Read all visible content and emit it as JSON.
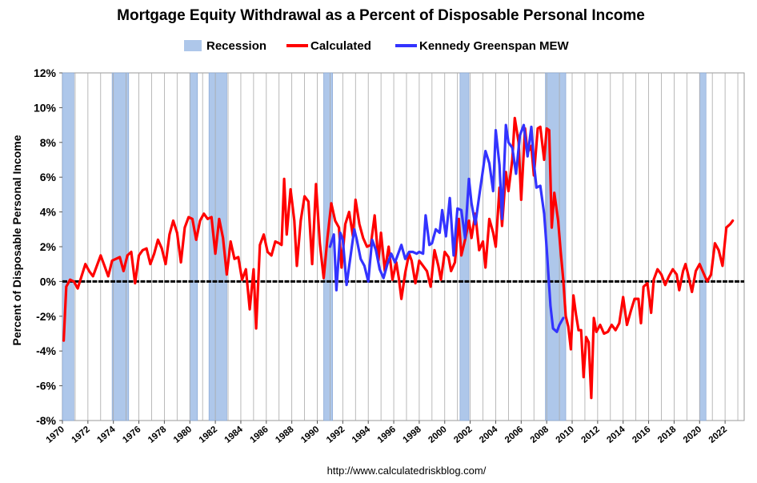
{
  "chart_data": {
    "type": "line",
    "title": "Mortgage Equity Withdrawal as a Percent of Disposable Personal Income",
    "ylabel": "Percent of Disposable Personal Income",
    "xlabel": "",
    "source": "http://www.calculatedriskblog.com/",
    "xlim": [
      1970,
      2023.5
    ],
    "ylim": [
      -8,
      12
    ],
    "x_ticks": [
      1970,
      1972,
      1974,
      1976,
      1978,
      1980,
      1982,
      1984,
      1986,
      1988,
      1990,
      1992,
      1994,
      1996,
      1998,
      2000,
      2002,
      2004,
      2006,
      2008,
      2010,
      2012,
      2014,
      2016,
      2018,
      2020,
      2022
    ],
    "y_ticks": [
      -8,
      -6,
      -4,
      -2,
      0,
      2,
      4,
      6,
      8,
      10,
      12
    ],
    "y_tick_labels": [
      "-8%",
      "-6%",
      "-4%",
      "-2%",
      "0%",
      "2%",
      "4%",
      "6%",
      "8%",
      "10%",
      "12%"
    ],
    "grid": "vertical",
    "legend_position": "top",
    "legend": [
      {
        "name": "Recession",
        "color": "#aec7ea",
        "kind": "box"
      },
      {
        "name": "Calculated",
        "color": "#ff0000",
        "kind": "line"
      },
      {
        "name": "Kennedy Greenspan MEW",
        "color": "#3333ff",
        "kind": "line"
      }
    ],
    "recessions": [
      [
        1970.0,
        1970.9
      ],
      [
        1973.9,
        1975.2
      ],
      [
        1980.0,
        1980.6
      ],
      [
        1981.5,
        1982.9
      ],
      [
        1990.5,
        1991.2
      ],
      [
        2001.2,
        2001.9
      ],
      [
        2007.9,
        2009.5
      ],
      [
        2020.0,
        2020.5
      ]
    ],
    "series": [
      {
        "name": "Calculated",
        "color": "#ff0000",
        "points": [
          [
            1970.1,
            -3.4
          ],
          [
            1970.3,
            -0.3
          ],
          [
            1970.6,
            0.1
          ],
          [
            1970.9,
            0.0
          ],
          [
            1971.2,
            -0.4
          ],
          [
            1971.5,
            0.3
          ],
          [
            1971.8,
            1.0
          ],
          [
            1972.1,
            0.6
          ],
          [
            1972.4,
            0.3
          ],
          [
            1972.7,
            0.9
          ],
          [
            1973.0,
            1.5
          ],
          [
            1973.3,
            0.9
          ],
          [
            1973.6,
            0.3
          ],
          [
            1973.9,
            1.2
          ],
          [
            1974.2,
            1.3
          ],
          [
            1974.5,
            1.4
          ],
          [
            1974.8,
            0.6
          ],
          [
            1975.1,
            1.5
          ],
          [
            1975.4,
            1.7
          ],
          [
            1975.7,
            -0.1
          ],
          [
            1976.0,
            1.5
          ],
          [
            1976.3,
            1.8
          ],
          [
            1976.6,
            1.9
          ],
          [
            1976.9,
            1.0
          ],
          [
            1977.2,
            1.6
          ],
          [
            1977.5,
            2.4
          ],
          [
            1977.8,
            1.9
          ],
          [
            1978.1,
            1.0
          ],
          [
            1978.4,
            2.7
          ],
          [
            1978.7,
            3.5
          ],
          [
            1979.0,
            2.8
          ],
          [
            1979.3,
            1.1
          ],
          [
            1979.6,
            3.1
          ],
          [
            1979.9,
            3.7
          ],
          [
            1980.2,
            3.6
          ],
          [
            1980.5,
            2.4
          ],
          [
            1980.8,
            3.5
          ],
          [
            1981.1,
            3.9
          ],
          [
            1981.4,
            3.6
          ],
          [
            1981.7,
            3.7
          ],
          [
            1982.0,
            1.6
          ],
          [
            1982.3,
            3.6
          ],
          [
            1982.6,
            2.5
          ],
          [
            1982.9,
            0.4
          ],
          [
            1983.2,
            2.3
          ],
          [
            1983.5,
            1.3
          ],
          [
            1983.8,
            1.4
          ],
          [
            1984.1,
            0.1
          ],
          [
            1984.4,
            0.7
          ],
          [
            1984.7,
            -1.6
          ],
          [
            1985.0,
            0.7
          ],
          [
            1985.2,
            -2.7
          ],
          [
            1985.5,
            2.1
          ],
          [
            1985.8,
            2.7
          ],
          [
            1986.1,
            1.7
          ],
          [
            1986.4,
            1.5
          ],
          [
            1986.7,
            2.3
          ],
          [
            1987.0,
            2.2
          ],
          [
            1987.2,
            2.1
          ],
          [
            1987.4,
            5.9
          ],
          [
            1987.6,
            2.7
          ],
          [
            1987.9,
            5.3
          ],
          [
            1988.2,
            3.5
          ],
          [
            1988.4,
            0.9
          ],
          [
            1988.7,
            3.5
          ],
          [
            1989.0,
            4.9
          ],
          [
            1989.3,
            4.6
          ],
          [
            1989.6,
            1.0
          ],
          [
            1989.9,
            5.6
          ],
          [
            1990.2,
            2.2
          ],
          [
            1990.5,
            0.2
          ],
          [
            1990.8,
            2.5
          ],
          [
            1991.1,
            4.5
          ],
          [
            1991.4,
            3.5
          ],
          [
            1991.7,
            3.1
          ],
          [
            1991.9,
            0.8
          ],
          [
            1992.2,
            3.3
          ],
          [
            1992.5,
            4.0
          ],
          [
            1992.8,
            2.6
          ],
          [
            1993.0,
            4.7
          ],
          [
            1993.3,
            3.3
          ],
          [
            1993.6,
            2.5
          ],
          [
            1993.9,
            2.0
          ],
          [
            1994.2,
            2.1
          ],
          [
            1994.5,
            3.8
          ],
          [
            1994.8,
            1.2
          ],
          [
            1995.0,
            2.8
          ],
          [
            1995.3,
            0.6
          ],
          [
            1995.6,
            2.0
          ],
          [
            1995.9,
            0.1
          ],
          [
            1996.2,
            1.1
          ],
          [
            1996.4,
            0.2
          ],
          [
            1996.6,
            -1.0
          ],
          [
            1996.9,
            0.5
          ],
          [
            1997.2,
            1.6
          ],
          [
            1997.4,
            1.2
          ],
          [
            1997.7,
            -0.1
          ],
          [
            1998.0,
            1.2
          ],
          [
            1998.3,
            0.9
          ],
          [
            1998.6,
            0.6
          ],
          [
            1998.9,
            -0.3
          ],
          [
            1999.2,
            1.8
          ],
          [
            1999.5,
            0.9
          ],
          [
            1999.7,
            0.1
          ],
          [
            2000.0,
            1.7
          ],
          [
            2000.3,
            1.4
          ],
          [
            2000.5,
            0.6
          ],
          [
            2000.8,
            1.1
          ],
          [
            2001.1,
            3.6
          ],
          [
            2001.3,
            1.5
          ],
          [
            2001.6,
            2.4
          ],
          [
            2001.9,
            3.5
          ],
          [
            2002.1,
            2.5
          ],
          [
            2002.4,
            3.9
          ],
          [
            2002.7,
            1.8
          ],
          [
            2003.0,
            2.3
          ],
          [
            2003.2,
            0.8
          ],
          [
            2003.5,
            3.6
          ],
          [
            2003.8,
            2.8
          ],
          [
            2004.0,
            2.0
          ],
          [
            2004.3,
            5.4
          ],
          [
            2004.5,
            3.2
          ],
          [
            2004.8,
            6.3
          ],
          [
            2005.0,
            5.2
          ],
          [
            2005.3,
            7.0
          ],
          [
            2005.5,
            9.4
          ],
          [
            2005.8,
            8.0
          ],
          [
            2006.0,
            4.7
          ],
          [
            2006.3,
            8.8
          ],
          [
            2006.5,
            7.4
          ],
          [
            2006.8,
            7.8
          ],
          [
            2007.0,
            6.1
          ],
          [
            2007.3,
            8.8
          ],
          [
            2007.5,
            8.9
          ],
          [
            2007.8,
            7.0
          ],
          [
            2008.0,
            8.8
          ],
          [
            2008.2,
            8.7
          ],
          [
            2008.4,
            3.1
          ],
          [
            2008.6,
            5.1
          ],
          [
            2008.9,
            3.5
          ],
          [
            2009.1,
            1.7
          ],
          [
            2009.3,
            0.1
          ],
          [
            2009.5,
            -2.0
          ],
          [
            2009.7,
            -2.6
          ],
          [
            2009.9,
            -3.9
          ],
          [
            2010.1,
            -0.8
          ],
          [
            2010.3,
            -1.9
          ],
          [
            2010.5,
            -2.8
          ],
          [
            2010.7,
            -2.8
          ],
          [
            2010.9,
            -5.5
          ],
          [
            2011.1,
            -3.2
          ],
          [
            2011.3,
            -3.5
          ],
          [
            2011.5,
            -6.7
          ],
          [
            2011.7,
            -2.1
          ],
          [
            2011.9,
            -2.9
          ],
          [
            2012.2,
            -2.5
          ],
          [
            2012.5,
            -3.0
          ],
          [
            2012.8,
            -2.9
          ],
          [
            2013.1,
            -2.5
          ],
          [
            2013.4,
            -2.8
          ],
          [
            2013.7,
            -2.4
          ],
          [
            2014.0,
            -0.9
          ],
          [
            2014.3,
            -2.5
          ],
          [
            2014.6,
            -1.7
          ],
          [
            2014.9,
            -1.0
          ],
          [
            2015.2,
            -1.0
          ],
          [
            2015.4,
            -2.4
          ],
          [
            2015.6,
            -0.3
          ],
          [
            2015.9,
            -0.1
          ],
          [
            2016.2,
            -1.8
          ],
          [
            2016.4,
            0.1
          ],
          [
            2016.7,
            0.7
          ],
          [
            2017.0,
            0.4
          ],
          [
            2017.3,
            -0.2
          ],
          [
            2017.6,
            0.3
          ],
          [
            2017.9,
            0.7
          ],
          [
            2018.2,
            0.4
          ],
          [
            2018.4,
            -0.5
          ],
          [
            2018.7,
            0.6
          ],
          [
            2018.9,
            1.0
          ],
          [
            2019.1,
            0.4
          ],
          [
            2019.4,
            -0.6
          ],
          [
            2019.7,
            0.6
          ],
          [
            2020.0,
            1.0
          ],
          [
            2020.3,
            0.5
          ],
          [
            2020.6,
            0.0
          ],
          [
            2020.9,
            0.4
          ],
          [
            2021.2,
            2.2
          ],
          [
            2021.5,
            1.8
          ],
          [
            2021.8,
            0.9
          ],
          [
            2022.1,
            3.1
          ],
          [
            2022.4,
            3.3
          ],
          [
            2022.6,
            3.5
          ]
        ]
      },
      {
        "name": "Kennedy Greenspan MEW",
        "color": "#3333ff",
        "points": [
          [
            1991.0,
            2.0
          ],
          [
            1991.3,
            2.7
          ],
          [
            1991.5,
            -0.5
          ],
          [
            1991.8,
            2.8
          ],
          [
            1992.0,
            2.4
          ],
          [
            1992.3,
            -0.2
          ],
          [
            1992.6,
            1.4
          ],
          [
            1992.9,
            3.0
          ],
          [
            1993.1,
            2.4
          ],
          [
            1993.4,
            1.3
          ],
          [
            1993.7,
            0.9
          ],
          [
            1994.0,
            0.0
          ],
          [
            1994.3,
            2.4
          ],
          [
            1994.6,
            1.8
          ],
          [
            1994.9,
            0.7
          ],
          [
            1995.2,
            0.2
          ],
          [
            1995.5,
            1.0
          ],
          [
            1995.8,
            1.6
          ],
          [
            1996.1,
            1.1
          ],
          [
            1996.3,
            1.5
          ],
          [
            1996.6,
            2.1
          ],
          [
            1996.9,
            1.3
          ],
          [
            1997.2,
            1.7
          ],
          [
            1997.5,
            1.7
          ],
          [
            1997.8,
            1.6
          ],
          [
            1998.0,
            1.7
          ],
          [
            1998.3,
            1.6
          ],
          [
            1998.5,
            3.8
          ],
          [
            1998.8,
            2.1
          ],
          [
            1999.0,
            2.2
          ],
          [
            1999.3,
            3.0
          ],
          [
            1999.6,
            2.8
          ],
          [
            1999.8,
            4.1
          ],
          [
            2000.1,
            2.6
          ],
          [
            2000.4,
            4.8
          ],
          [
            2000.7,
            1.5
          ],
          [
            2001.0,
            4.2
          ],
          [
            2001.3,
            4.1
          ],
          [
            2001.6,
            2.5
          ],
          [
            2001.9,
            5.9
          ],
          [
            2002.1,
            4.5
          ],
          [
            2002.4,
            3.3
          ],
          [
            2002.7,
            4.9
          ],
          [
            2003.0,
            6.4
          ],
          [
            2003.2,
            7.5
          ],
          [
            2003.5,
            6.8
          ],
          [
            2003.8,
            5.2
          ],
          [
            2004.0,
            8.7
          ],
          [
            2004.3,
            6.7
          ],
          [
            2004.5,
            3.6
          ],
          [
            2004.8,
            9.0
          ],
          [
            2005.0,
            8.0
          ],
          [
            2005.3,
            7.7
          ],
          [
            2005.6,
            6.2
          ],
          [
            2005.9,
            8.4
          ],
          [
            2006.2,
            9.0
          ],
          [
            2006.5,
            7.2
          ],
          [
            2006.8,
            8.9
          ],
          [
            2007.0,
            6.8
          ],
          [
            2007.2,
            5.4
          ],
          [
            2007.5,
            5.5
          ],
          [
            2007.8,
            3.9
          ],
          [
            2008.0,
            1.9
          ],
          [
            2008.3,
            -1.4
          ],
          [
            2008.5,
            -2.7
          ],
          [
            2008.8,
            -2.9
          ],
          [
            2009.0,
            -2.5
          ],
          [
            2009.3,
            -2.1
          ]
        ]
      }
    ]
  }
}
